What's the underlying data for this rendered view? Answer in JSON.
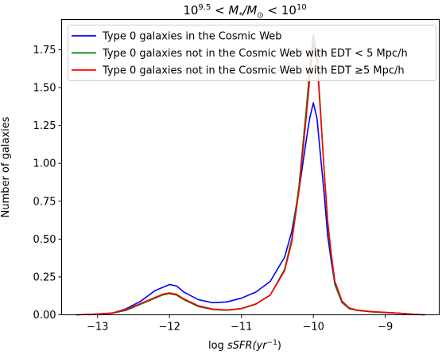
{
  "chart_data": {
    "type": "line",
    "title_parts": {
      "base": "10",
      "low_exp": "9.5",
      "middle": " < M",
      "sub1": "*",
      "slash": "/M",
      "sub2": "⊙",
      "lt": " < 10",
      "high_exp": "10"
    },
    "xlabel_parts": {
      "log": "log ",
      "var": "sSFR",
      "unit": "(yr",
      "exp": "−1",
      "close": ")"
    },
    "ylabel": "Number of galaxies",
    "xlim": [
      -13.5,
      -8.25
    ],
    "ylim": [
      0,
      1.95
    ],
    "x_ticks": [
      -13,
      -12,
      -11,
      -10,
      -9
    ],
    "x_tick_labels": [
      "−13",
      "−12",
      "−11",
      "−10",
      "−9"
    ],
    "y_ticks": [
      0,
      0.25,
      0.5,
      0.75,
      1.0,
      1.25,
      1.5,
      1.75
    ],
    "y_tick_labels": [
      "0.00",
      "0.25",
      "0.50",
      "0.75",
      "1.00",
      "1.25",
      "1.50",
      "1.75"
    ],
    "grid": false,
    "legend_position": "top-right",
    "series": [
      {
        "name": "Type 0 galaxies in the Cosmic Web",
        "color": "#0000ff",
        "x": [
          -13.3,
          -13.0,
          -12.8,
          -12.6,
          -12.4,
          -12.2,
          -12.1,
          -12.0,
          -11.9,
          -11.8,
          -11.6,
          -11.4,
          -11.2,
          -11.0,
          -10.8,
          -10.6,
          -10.4,
          -10.3,
          -10.2,
          -10.1,
          -10.05,
          -10.0,
          -9.95,
          -9.9,
          -9.85,
          -9.8,
          -9.75,
          -9.7,
          -9.6,
          -9.5,
          -9.4,
          -9.2,
          -9.0,
          -8.8,
          -8.6,
          -8.45
        ],
        "y": [
          0.0,
          0.005,
          0.01,
          0.04,
          0.09,
          0.16,
          0.18,
          0.2,
          0.19,
          0.15,
          0.1,
          0.08,
          0.085,
          0.11,
          0.15,
          0.22,
          0.38,
          0.55,
          0.82,
          1.15,
          1.3,
          1.4,
          1.3,
          1.05,
          0.8,
          0.52,
          0.35,
          0.2,
          0.08,
          0.045,
          0.03,
          0.02,
          0.015,
          0.01,
          0.003,
          0.0
        ]
      },
      {
        "name": "Type 0 galaxies not in the Cosmic Web with EDT < 5 Mpc/h",
        "color": "#008000",
        "x": [
          -13.3,
          -13.0,
          -12.8,
          -12.6,
          -12.4,
          -12.2,
          -12.1,
          -12.0,
          -11.9,
          -11.8,
          -11.6,
          -11.4,
          -11.2,
          -11.0,
          -10.8,
          -10.6,
          -10.4,
          -10.3,
          -10.2,
          -10.1,
          -10.05,
          -10.0,
          -9.95,
          -9.9,
          -9.85,
          -9.8,
          -9.75,
          -9.7,
          -9.6,
          -9.5,
          -9.4,
          -9.2,
          -9.0,
          -8.8,
          -8.6,
          -8.45
        ],
        "y": [
          0.0,
          0.005,
          0.01,
          0.03,
          0.07,
          0.11,
          0.13,
          0.14,
          0.13,
          0.1,
          0.055,
          0.035,
          0.03,
          0.04,
          0.07,
          0.13,
          0.3,
          0.5,
          0.85,
          1.35,
          1.62,
          1.85,
          1.72,
          1.35,
          0.95,
          0.6,
          0.38,
          0.2,
          0.08,
          0.04,
          0.03,
          0.02,
          0.015,
          0.01,
          0.003,
          0.0
        ]
      },
      {
        "name": "Type 0 galaxies not in the Cosmic Web with EDT  ≥5 Mpc/h",
        "color": "#ff0000",
        "x": [
          -13.3,
          -13.0,
          -12.8,
          -12.6,
          -12.4,
          -12.2,
          -12.1,
          -12.0,
          -11.9,
          -11.8,
          -11.6,
          -11.4,
          -11.2,
          -11.0,
          -10.8,
          -10.6,
          -10.4,
          -10.3,
          -10.2,
          -10.1,
          -10.05,
          -10.0,
          -9.95,
          -9.9,
          -9.85,
          -9.8,
          -9.75,
          -9.7,
          -9.6,
          -9.5,
          -9.4,
          -9.2,
          -9.0,
          -8.8,
          -8.6,
          -8.45
        ],
        "y": [
          0.0,
          0.005,
          0.012,
          0.035,
          0.075,
          0.115,
          0.135,
          0.145,
          0.135,
          0.105,
          0.06,
          0.038,
          0.032,
          0.042,
          0.072,
          0.13,
          0.29,
          0.48,
          0.82,
          1.3,
          1.56,
          1.8,
          1.68,
          1.33,
          0.95,
          0.62,
          0.4,
          0.22,
          0.09,
          0.045,
          0.032,
          0.022,
          0.016,
          0.01,
          0.003,
          0.0
        ]
      }
    ]
  }
}
